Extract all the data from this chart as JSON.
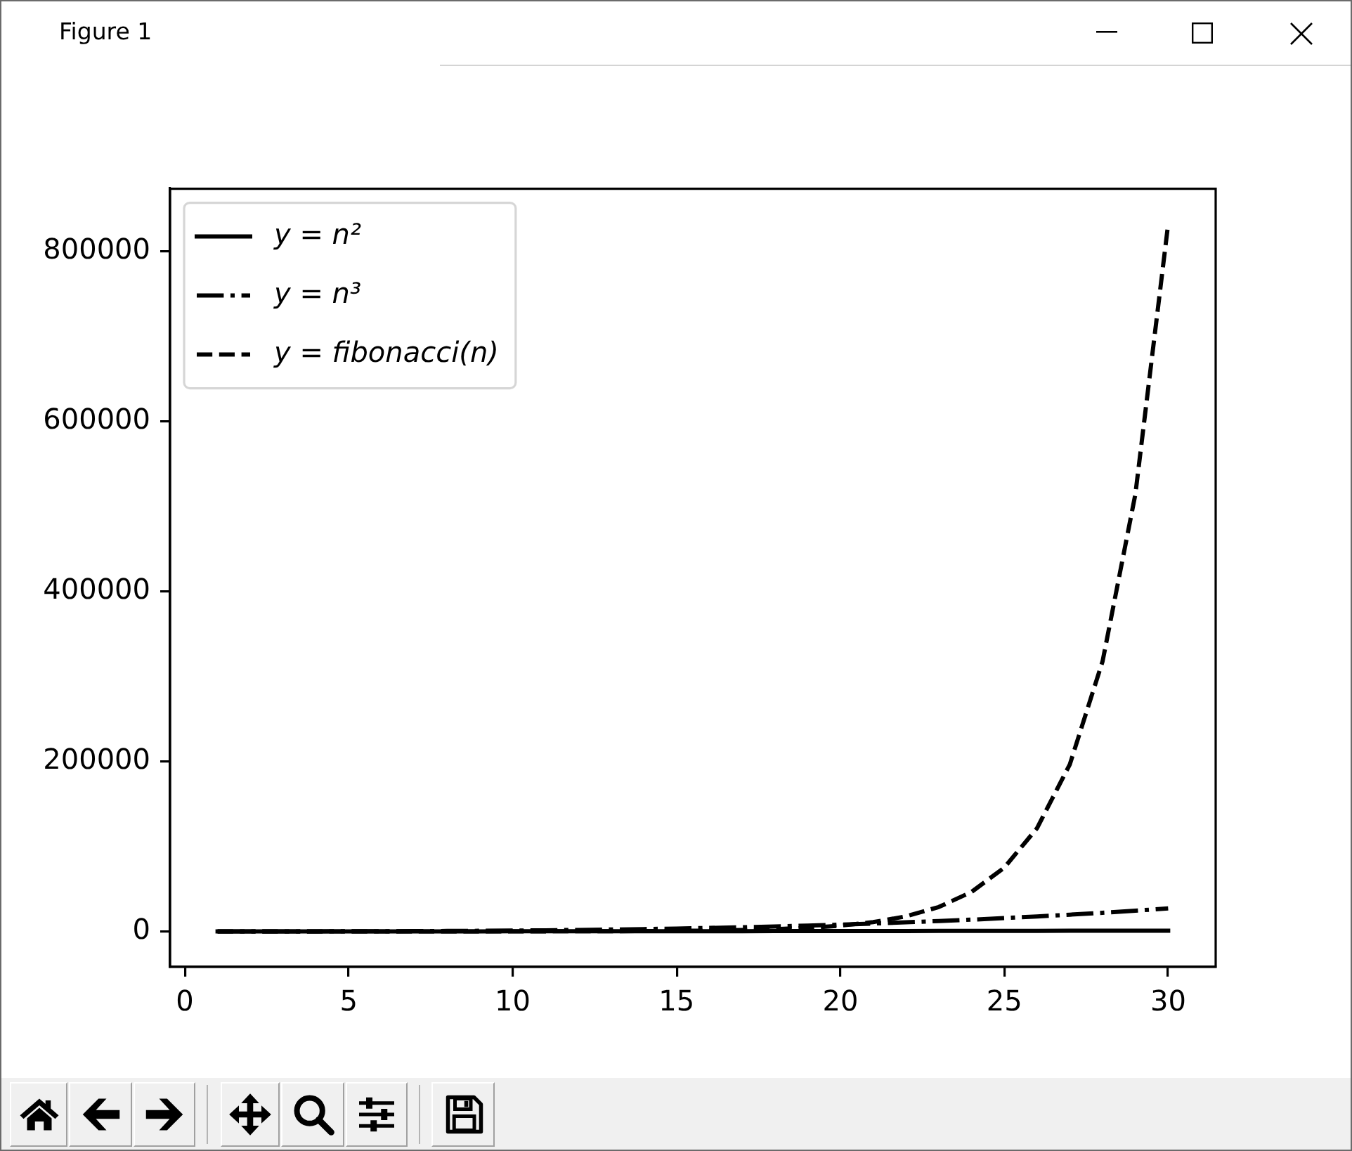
{
  "chart_data": {
    "type": "line",
    "title": "Figure 1",
    "x": [
      1,
      2,
      3,
      4,
      5,
      6,
      7,
      8,
      9,
      10,
      11,
      12,
      13,
      14,
      15,
      16,
      17,
      18,
      19,
      20,
      21,
      22,
      23,
      24,
      25,
      26,
      27,
      28,
      29,
      30
    ],
    "series": [
      {
        "name": "y = n²",
        "color": "#000000",
        "line_style": "solid",
        "values": [
          1,
          4,
          9,
          16,
          25,
          36,
          49,
          64,
          81,
          100,
          121,
          144,
          169,
          196,
          225,
          256,
          289,
          324,
          361,
          400,
          441,
          484,
          529,
          576,
          625,
          676,
          729,
          784,
          841,
          900
        ]
      },
      {
        "name": "y = n³",
        "color": "#000000",
        "line_style": "dashdot",
        "values": [
          1,
          8,
          27,
          64,
          125,
          216,
          343,
          512,
          729,
          1000,
          1331,
          1728,
          2197,
          2744,
          3375,
          4096,
          4913,
          5832,
          6859,
          8000,
          9261,
          10648,
          12167,
          13824,
          15625,
          17576,
          19683,
          21952,
          24389,
          27000
        ]
      },
      {
        "name": "y = fibonacci(n)",
        "color": "#000000",
        "line_style": "dashed",
        "values": [
          1,
          1,
          2,
          3,
          5,
          8,
          13,
          21,
          34,
          55,
          89,
          144,
          233,
          377,
          610,
          987,
          1597,
          2584,
          4181,
          6765,
          10946,
          17711,
          28657,
          46368,
          75025,
          121393,
          196418,
          317811,
          514229,
          832040
        ]
      }
    ],
    "xlim": [
      -0.45,
      31.45
    ],
    "xticks": [
      0,
      5,
      10,
      15,
      20,
      25,
      30
    ],
    "ylim": [
      -41601,
      873642
    ],
    "yticks": [
      0,
      200000,
      400000,
      600000,
      800000
    ],
    "legend": "top left"
  }
}
